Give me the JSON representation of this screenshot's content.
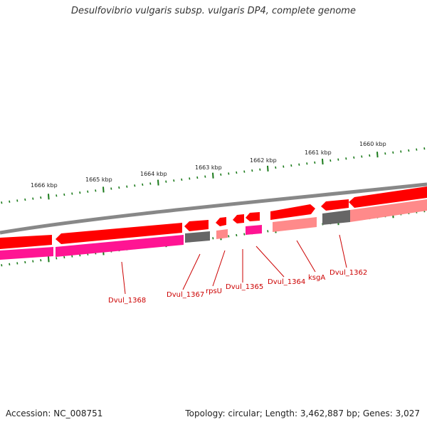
{
  "title": "Desulfovibrio vulgaris subsp. vulgaris DP4, complete genome",
  "ticks": [
    {
      "label": "1666 kbp"
    },
    {
      "label": "1665 kbp"
    },
    {
      "label": "1664 kbp"
    },
    {
      "label": "1663 kbp"
    },
    {
      "label": "1662 kbp"
    },
    {
      "label": "1661 kbp"
    },
    {
      "label": "1660 kbp"
    }
  ],
  "genes": [
    {
      "name": "Dvul_1368"
    },
    {
      "name": "Dvul_1367"
    },
    {
      "name": "rpsU"
    },
    {
      "name": "Dvul_1365"
    },
    {
      "name": "Dvul_1364"
    },
    {
      "name": "ksgA"
    },
    {
      "name": "Dvul_1362"
    }
  ],
  "colors": {
    "cds_forward": "#ff0000",
    "cds_shade": "#ff8a8a",
    "pseudo_gray": "#666666",
    "magenta": "#ff1493",
    "backbone": "#888888",
    "ticks": "#1a7a1a",
    "label_red": "#cc0000"
  },
  "footer": {
    "accession": "Accession: NC_008751",
    "summary": "Topology: circular; Length: 3,462,887 bp; Genes: 3,027"
  }
}
